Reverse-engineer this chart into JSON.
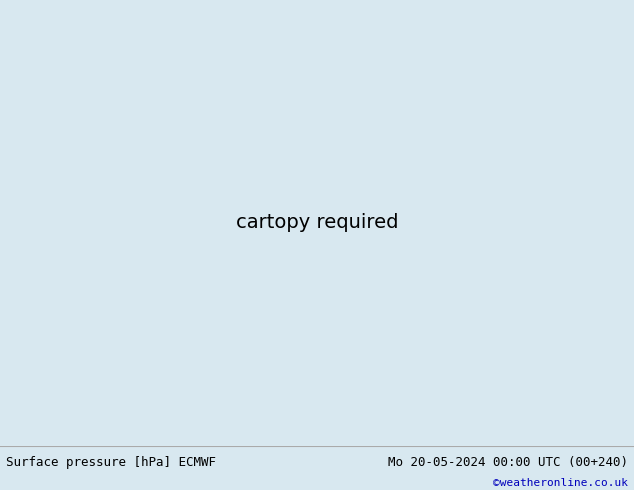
{
  "title_left": "Surface pressure [hPa] ECMWF",
  "title_right": "Mo 20-05-2024 00:00 UTC (00+240)",
  "credit": "©weatheronline.co.uk",
  "ocean_color": "#d8e8f0",
  "land_color": "#a8d878",
  "mountain_color": "#b0b0b0",
  "border_color": "#888888",
  "footer_bg": "#e0e0e0",
  "footer_line_color": "#aaaaaa",
  "title_fontsize": 9,
  "credit_color": "#0000bb",
  "credit_fontsize": 8,
  "fig_width": 6.34,
  "fig_height": 4.9,
  "map_extent": [
    -30,
    50,
    30,
    75
  ],
  "label_fontsize": 6
}
